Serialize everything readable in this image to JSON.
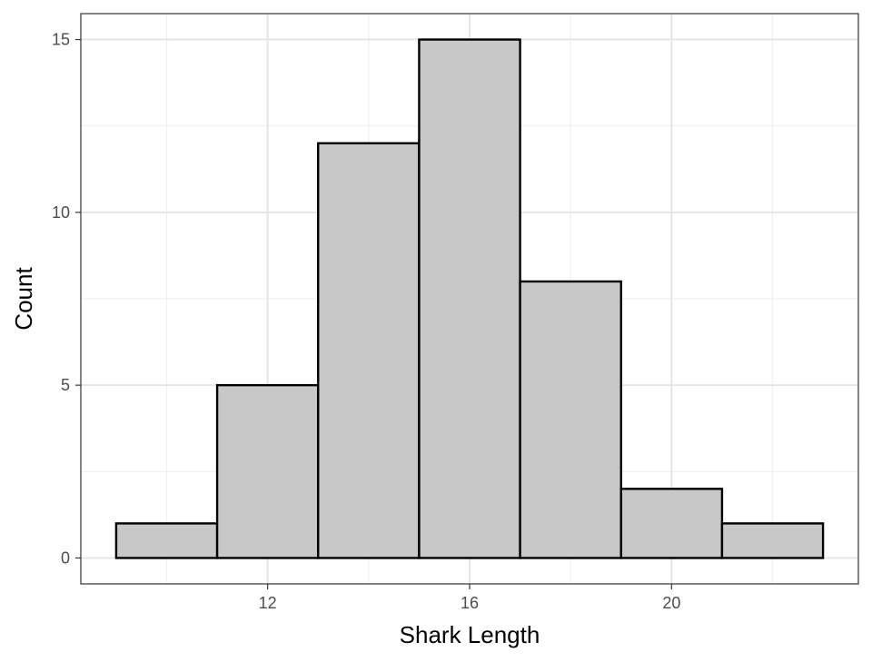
{
  "chart_data": {
    "type": "bar",
    "xlabel": "Shark Length",
    "ylabel": "Count",
    "title": "",
    "bins": [
      {
        "x0": 9,
        "x1": 11,
        "count": 1
      },
      {
        "x0": 11,
        "x1": 13,
        "count": 5
      },
      {
        "x0": 13,
        "x1": 15,
        "count": 12
      },
      {
        "x0": 15,
        "x1": 17,
        "count": 15
      },
      {
        "x0": 17,
        "x1": 19,
        "count": 8
      },
      {
        "x0": 19,
        "x1": 21,
        "count": 2
      },
      {
        "x0": 21,
        "x1": 23,
        "count": 1
      }
    ],
    "xlim": [
      8.3,
      23.7
    ],
    "ylim": [
      -0.75,
      15.75
    ],
    "x_ticks": [
      12,
      16,
      20
    ],
    "x_tick_labels": [
      "12",
      "16",
      "20"
    ],
    "y_ticks": [
      0,
      5,
      10,
      15
    ],
    "y_tick_labels": [
      "0",
      "5",
      "10",
      "15"
    ],
    "grid": true,
    "colors": {
      "bar_fill": "#c8c8c8",
      "bar_stroke": "#000000",
      "grid_major": "#e6e6e6",
      "grid_minor": "#f0f0f0",
      "panel_border": "#333333"
    }
  }
}
